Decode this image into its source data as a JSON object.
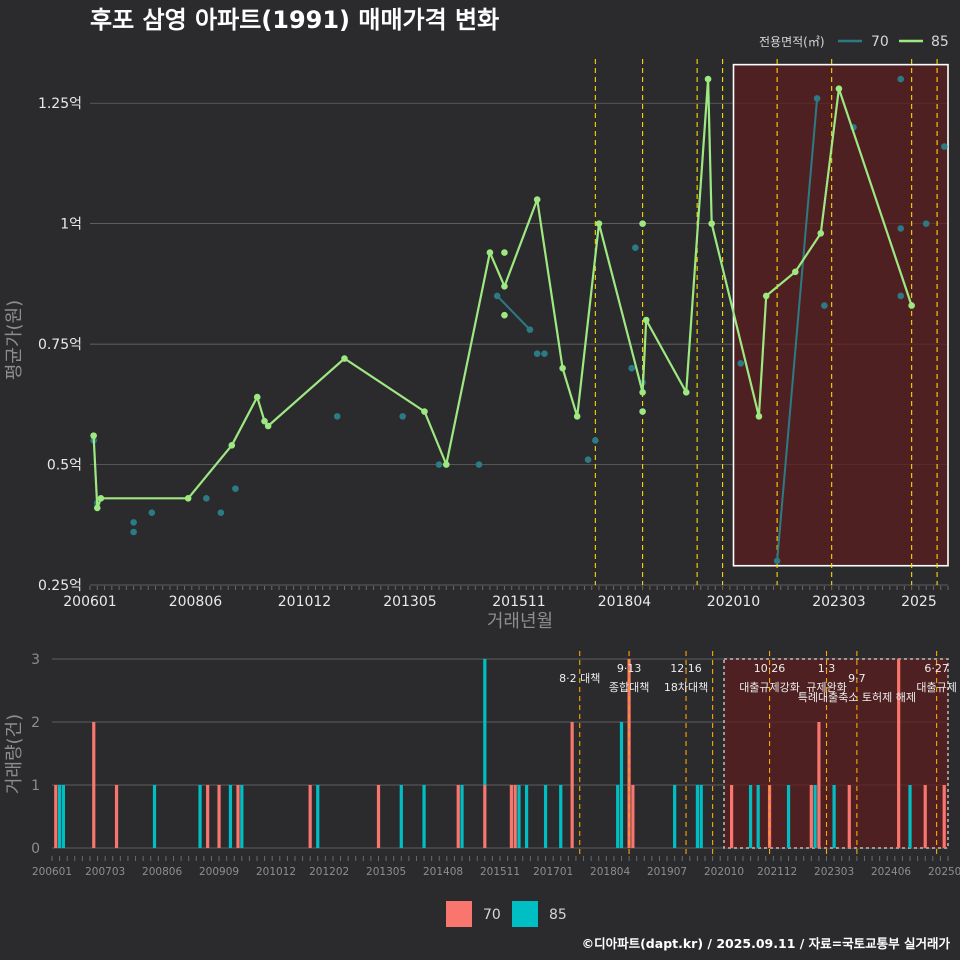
{
  "title": "후포 삼영 아파트(1991) 매매가격 변화",
  "footer": "©디아파트(dapt.kr) / 2025.09.11 / 자료=국토교통부 실거래가",
  "colors": {
    "background": "#2b2b2d",
    "area70": "#2c7b84",
    "area85": "#9ee882",
    "bar70": "#f8766d",
    "bar85": "#00bfc4",
    "policy_line": "#ffd700",
    "highlight": "#5c1d1d"
  },
  "chart_data": [
    {
      "type": "line",
      "title": "후포 삼영 아파트(1991) 매매가격 변화",
      "xlabel": "거래년월",
      "ylabel": "평균가(원)",
      "x_tick_labels": [
        "200601",
        "200806",
        "201012",
        "201305",
        "201511",
        "201804",
        "202010",
        "202303",
        "2025"
      ],
      "y_ticks": [
        0.25,
        0.5,
        0.75,
        1.0,
        1.25
      ],
      "y_tick_labels": [
        "0.25억",
        "0.5억",
        "0.75억",
        "1억",
        "1.25억"
      ],
      "ylim": [
        0.25,
        1.35
      ],
      "xlim": [
        "2006-01",
        "2025-09"
      ],
      "y_unit": "억원",
      "grid": true,
      "legend": {
        "title": "전용면적(㎡)",
        "position": "top-right"
      },
      "series": [
        {
          "name": "70",
          "color": "#2c7b84",
          "points": [
            [
              "2006-02",
              0.55
            ],
            [
              "2006-03",
              0.42
            ],
            [
              "2007-01",
              0.38
            ],
            [
              "2007-01",
              0.36
            ],
            [
              "2007-06",
              0.4
            ],
            [
              "2008-09",
              0.43
            ],
            [
              "2009-01",
              0.4
            ],
            [
              "2009-05",
              0.45
            ],
            [
              "2011-09",
              0.6
            ],
            [
              "2013-03",
              0.6
            ],
            [
              "2014-01",
              0.5
            ],
            [
              "2014-12",
              0.5
            ],
            [
              "2015-05",
              0.85
            ],
            [
              "2016-02",
              0.78
            ],
            [
              "2016-04",
              0.73
            ],
            [
              "2016-06",
              0.73
            ],
            [
              "2017-06",
              0.51
            ],
            [
              "2017-08",
              0.55
            ],
            [
              "2018-06",
              0.7
            ],
            [
              "2018-07",
              0.95
            ],
            [
              "2018-09",
              0.67
            ],
            [
              "2020-12",
              0.71
            ],
            [
              "2021-10",
              0.3
            ],
            [
              "2022-09",
              1.26
            ],
            [
              "2022-11",
              0.83
            ],
            [
              "2023-07",
              1.2
            ],
            [
              "2024-08",
              1.3
            ],
            [
              "2024-08",
              0.85
            ],
            [
              "2024-08",
              0.99
            ],
            [
              "2025-03",
              1.0
            ],
            [
              "2025-08",
              1.16
            ]
          ]
        },
        {
          "name": "85",
          "color": "#9ee882",
          "points": [
            [
              "2006-02",
              0.56
            ],
            [
              "2006-03",
              0.41
            ],
            [
              "2006-04",
              0.43
            ],
            [
              "2008-04",
              0.43
            ],
            [
              "2009-04",
              0.54
            ],
            [
              "2009-11",
              0.64
            ],
            [
              "2010-01",
              0.59
            ],
            [
              "2010-02",
              0.58
            ],
            [
              "2011-11",
              0.72
            ],
            [
              "2013-09",
              0.61
            ],
            [
              "2014-03",
              0.5
            ],
            [
              "2015-03",
              0.94
            ],
            [
              "2015-07",
              0.87
            ],
            [
              "2016-04",
              1.05
            ],
            [
              "2016-11",
              0.7
            ],
            [
              "2017-03",
              0.6
            ],
            [
              "2017-09",
              1.0
            ],
            [
              "2018-09",
              0.65
            ],
            [
              "2018-10",
              0.8
            ],
            [
              "2019-09",
              0.65
            ],
            [
              "2020-03",
              1.3
            ],
            [
              "2020-04",
              1.0
            ],
            [
              "2021-05",
              0.6
            ],
            [
              "2021-07",
              0.85
            ],
            [
              "2022-03",
              0.9
            ],
            [
              "2022-10",
              0.98
            ],
            [
              "2023-03",
              1.28
            ],
            [
              "2024-11",
              0.83
            ]
          ],
          "extra_points": [
            [
              "2015-07",
              0.94
            ],
            [
              "2015-07",
              0.81
            ],
            [
              "2018-09",
              1.0
            ],
            [
              "2018-09",
              0.61
            ]
          ]
        }
      ],
      "policy_dates": [
        "2017-08",
        "2018-09",
        "2019-12",
        "2020-07",
        "2021-10",
        "2023-01",
        "2024-11",
        "2025-06"
      ],
      "highlight_range": [
        "2020-10",
        "2025-09"
      ]
    },
    {
      "type": "bar",
      "ylabel": "거래량(건)",
      "y_ticks": [
        0,
        1,
        2,
        3
      ],
      "x_tick_labels": [
        "200601",
        "200703",
        "200806",
        "200909",
        "201012",
        "201202",
        "201305",
        "201408",
        "201511",
        "201701",
        "201804",
        "201907",
        "202010",
        "202112",
        "202303",
        "202406",
        "202509"
      ],
      "legend": [
        "70",
        "85"
      ],
      "series_colors": {
        "70": "#f8766d",
        "85": "#00bfc4"
      },
      "bars": [
        [
          "2006-02",
          1,
          0
        ],
        [
          "2006-03",
          0,
          1
        ],
        [
          "2006-04",
          0,
          1
        ],
        [
          "2006-12",
          2,
          0
        ],
        [
          "2007-06",
          1,
          0
        ],
        [
          "2008-04",
          0,
          1
        ],
        [
          "2009-04",
          0,
          1
        ],
        [
          "2009-06",
          1,
          0
        ],
        [
          "2009-09",
          1,
          0
        ],
        [
          "2009-12",
          0,
          1
        ],
        [
          "2010-02",
          1,
          0
        ],
        [
          "2010-03",
          0,
          1
        ],
        [
          "2011-09",
          1,
          0
        ],
        [
          "2011-11",
          0,
          1
        ],
        [
          "2013-03",
          1,
          0
        ],
        [
          "2013-09",
          0,
          1
        ],
        [
          "2014-03",
          0,
          1
        ],
        [
          "2014-12",
          1,
          0
        ],
        [
          "2015-01",
          0,
          1
        ],
        [
          "2015-07",
          1,
          2
        ],
        [
          "2016-02",
          1,
          0
        ],
        [
          "2016-03",
          1,
          0
        ],
        [
          "2016-04",
          0,
          1
        ],
        [
          "2016-06",
          0,
          1
        ],
        [
          "2016-11",
          0,
          1
        ],
        [
          "2017-03",
          0,
          1
        ],
        [
          "2017-06",
          2,
          0
        ],
        [
          "2018-06",
          0,
          1
        ],
        [
          "2018-07",
          0,
          2
        ],
        [
          "2018-09",
          3,
          0
        ],
        [
          "2018-10",
          1,
          0
        ],
        [
          "2019-09",
          0,
          1
        ],
        [
          "2020-03",
          0,
          1
        ],
        [
          "2020-04",
          0,
          1
        ],
        [
          "2020-12",
          1,
          0
        ],
        [
          "2021-05",
          0,
          1
        ],
        [
          "2021-07",
          0,
          1
        ],
        [
          "2021-10",
          1,
          0
        ],
        [
          "2022-03",
          0,
          1
        ],
        [
          "2022-09",
          1,
          0
        ],
        [
          "2022-10",
          0,
          1
        ],
        [
          "2022-11",
          2,
          0
        ],
        [
          "2023-03",
          0,
          1
        ],
        [
          "2023-07",
          1,
          0
        ],
        [
          "2024-08",
          3,
          0
        ],
        [
          "2024-11",
          0,
          1
        ],
        [
          "2025-03",
          1,
          0
        ],
        [
          "2025-08",
          1,
          0
        ]
      ],
      "policies": [
        {
          "date": "2017-08",
          "label": "8·2 대책",
          "row": 1
        },
        {
          "date": "2018-09",
          "label": "9·13",
          "label2": "종합대책",
          "row": 0
        },
        {
          "date": "2019-12",
          "label": "12·16",
          "label2": "18차대책",
          "row": 0
        },
        {
          "date": "2020-07",
          "label": "",
          "row": 0
        },
        {
          "date": "2021-10",
          "label": "10·26",
          "label2": "대출규제강화",
          "row": 0
        },
        {
          "date": "2023-01",
          "label": "1·3",
          "label2": "규제완화",
          "row": 0
        },
        {
          "date": "2023-09",
          "label": "9·7",
          "label2": "특례대출축소 토허제 해제",
          "row": 1
        },
        {
          "date": "2025-06",
          "label": "6·27",
          "label2": "대출규제",
          "row": 0
        }
      ]
    }
  ]
}
